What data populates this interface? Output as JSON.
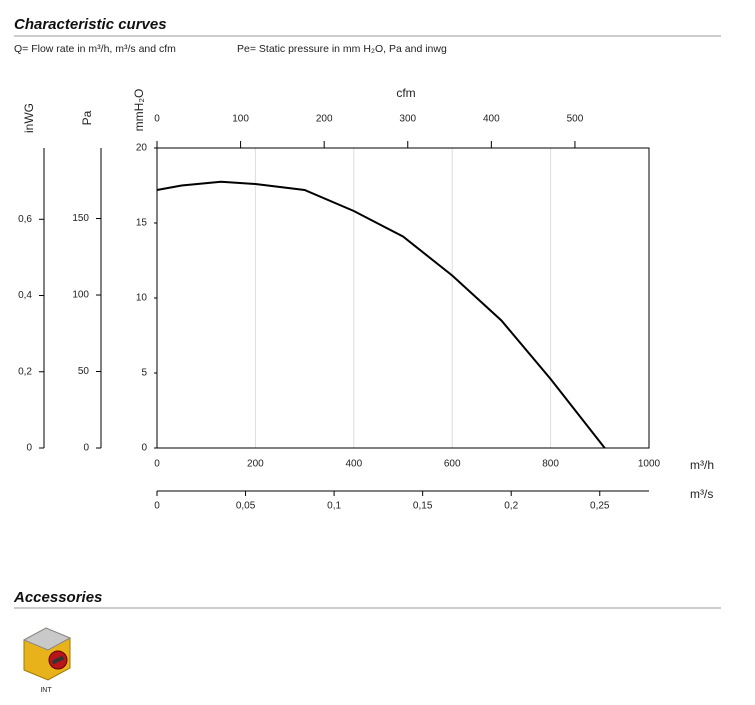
{
  "header": {
    "title": "Characteristic curves",
    "flow_note": "Q= Flow rate in m³/h, m³/s and cfm",
    "pressure_note": "Pe= Static pressure in mm H₂O, Pa and inwg"
  },
  "chart_data": {
    "type": "line",
    "color": "#000000",
    "x": [
      0,
      50,
      130,
      200,
      300,
      400,
      500,
      600,
      700,
      800,
      910
    ],
    "values": [
      17.2,
      17.5,
      17.75,
      17.6,
      17.2,
      15.8,
      14.1,
      11.5,
      8.5,
      4.6,
      0
    ],
    "xlim": [
      0,
      1000
    ],
    "xticks": [
      0,
      200,
      400,
      600,
      800,
      1000
    ],
    "x_label": "m³/h",
    "ylim": [
      0,
      20
    ],
    "yticks": [
      0,
      5,
      10,
      15,
      20
    ],
    "y_label": "mmH₂O",
    "grid": true,
    "secondary_x_axes": [
      {
        "label": "cfm",
        "side": "top",
        "lim": [
          0,
          588.6
        ],
        "ticks": [
          0,
          100,
          200,
          300,
          400,
          500
        ]
      },
      {
        "label": "m³/s",
        "side": "bottom",
        "lim": [
          0,
          0.2778
        ],
        "ticks": [
          0,
          {
            "value": 0.05,
            "label": "0,05"
          },
          {
            "value": 0.1,
            "label": "0,1"
          },
          {
            "value": 0.15,
            "label": "0,15"
          },
          {
            "value": 0.2,
            "label": "0,2"
          },
          {
            "value": 0.25,
            "label": "0,25"
          }
        ]
      }
    ],
    "secondary_y_axes": [
      {
        "label": "Pa",
        "lim": [
          0,
          196.1
        ],
        "ticks": [
          0,
          50,
          100,
          150
        ]
      },
      {
        "label": "inWG",
        "lim": [
          0,
          0.787
        ],
        "ticks": [
          0,
          {
            "value": 0.2,
            "label": "0,2"
          },
          {
            "value": 0.4,
            "label": "0,4"
          },
          {
            "value": 0.6,
            "label": "0,6"
          }
        ]
      }
    ]
  },
  "accessories": {
    "title": "Accessories",
    "items": [
      {
        "label": "INT"
      }
    ]
  }
}
